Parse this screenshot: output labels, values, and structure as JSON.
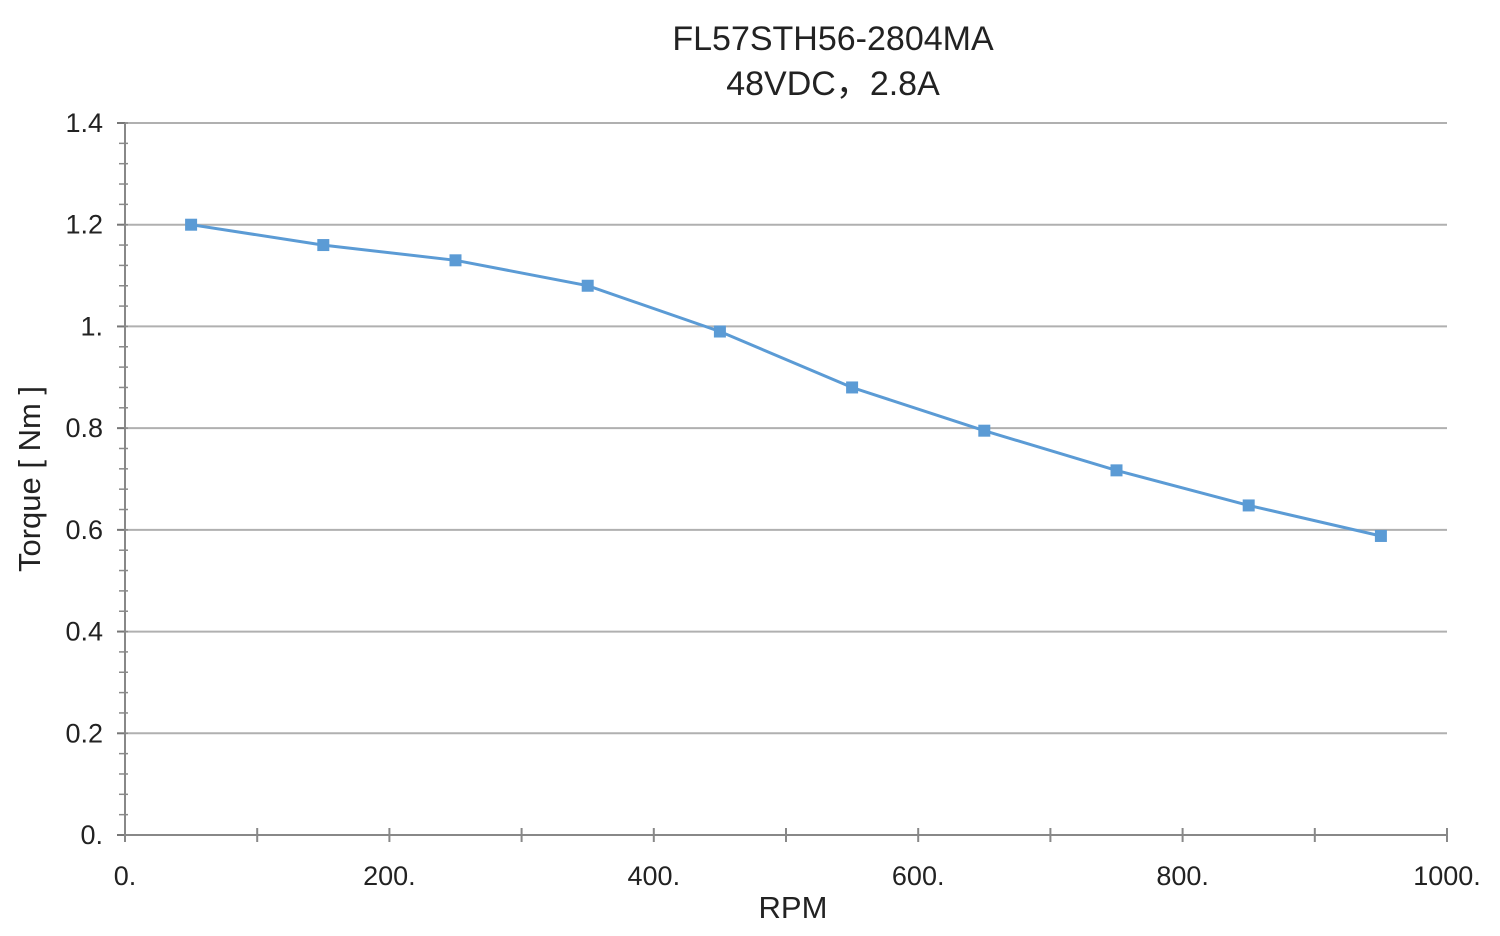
{
  "chart_data": {
    "type": "line",
    "title": "FL57STH56-2804MA",
    "subtitle": "48VDC，2.8A",
    "xlabel": "RPM",
    "ylabel": "Torque [ Nm ]",
    "xlim": [
      0,
      1000
    ],
    "ylim": [
      0,
      1.4
    ],
    "x_ticks": [
      0,
      200,
      400,
      600,
      800,
      1000
    ],
    "x_tick_labels": [
      "0.",
      "200.",
      "400.",
      "600.",
      "800.",
      "1000."
    ],
    "y_ticks": [
      0,
      0.2,
      0.4,
      0.6,
      0.8,
      1.0,
      1.2,
      1.4
    ],
    "y_tick_labels": [
      "0.",
      "0.2",
      "0.4",
      "0.6",
      "0.8",
      "1.",
      "1.2",
      "1.4"
    ],
    "grid": true,
    "legend": "none",
    "series": [
      {
        "x": [
          50,
          150,
          250,
          350,
          450,
          550,
          650,
          750,
          850,
          950
        ],
        "values": [
          1.2,
          1.16,
          1.13,
          1.08,
          0.99,
          0.88,
          0.795,
          0.717,
          0.648,
          0.588
        ],
        "color": "#5b9bd5",
        "marker": "square"
      }
    ]
  }
}
